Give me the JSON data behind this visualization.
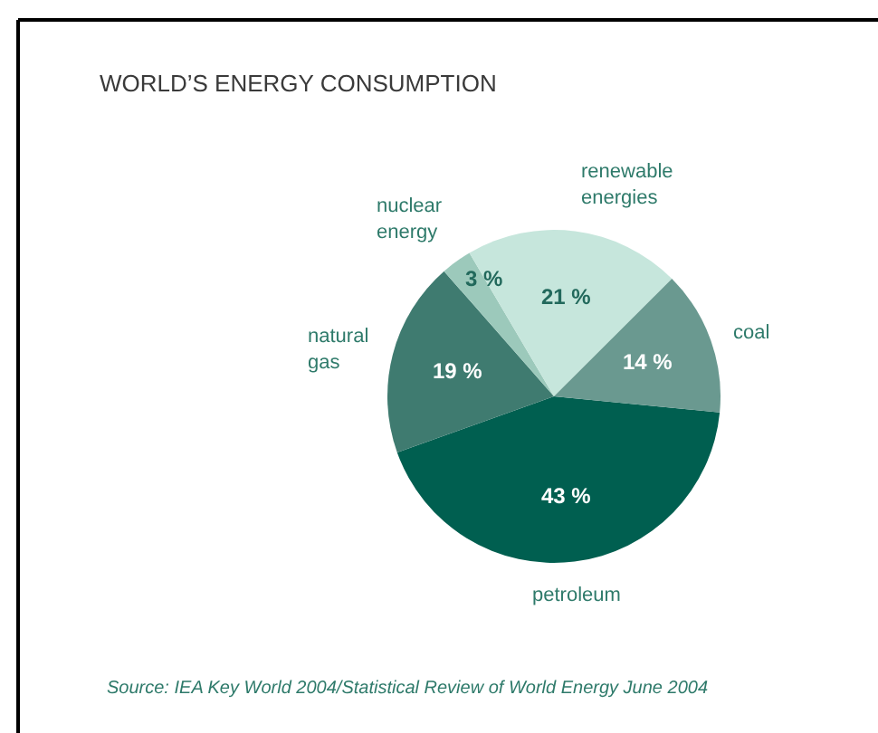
{
  "chart_data": {
    "type": "pie",
    "title": "WORLD’S ENERGY CONSUMPTION",
    "categories": [
      "petroleum",
      "natural gas",
      "nuclear energy",
      "renewable energies",
      "coal"
    ],
    "values": [
      43,
      19,
      3,
      21,
      14
    ],
    "value_labels": [
      "43 %",
      "19 %",
      "3 %",
      "21 %",
      "14 %"
    ],
    "colors": [
      "#005f50",
      "#3f7b70",
      "#9cc9bb",
      "#c6e6dc",
      "#6a9990"
    ],
    "annotations": [
      "Source: IEA Key World 2004/Statistical Review of World Energy June 2004"
    ]
  }
}
